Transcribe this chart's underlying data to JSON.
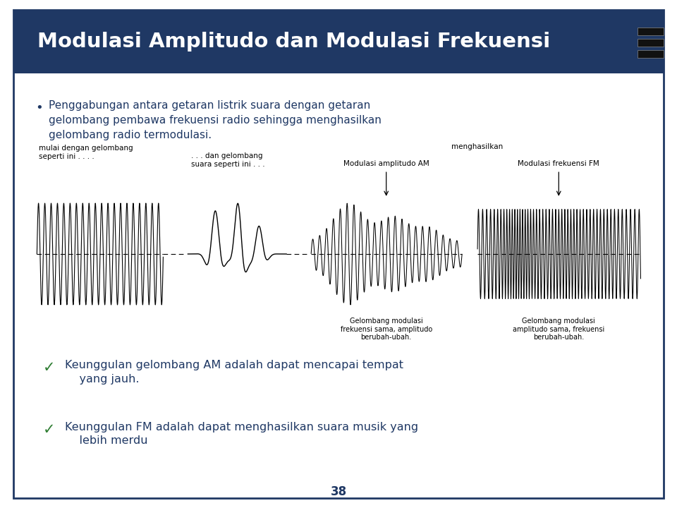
{
  "title": "Modulasi Amplitudo dan Modulasi Frekuensi",
  "title_bg": "#1F3864",
  "title_color": "#FFFFFF",
  "body_bg": "#FFFFFF",
  "border_color": "#1F3864",
  "text_color": "#1F3864",
  "bullet_text": "Penggabungan antara getaran listrik suara dengan getaran\ngelombang pembawa frekuensi radio sehingga menghasilkan\ngelombang radio termodulasi.",
  "label_carrier": "mulai dengan gelombang\nseperti ini . . . .",
  "label_sound": ". . . dan gelombang\nsuara seperti ini . . .",
  "label_menghasilkan": "menghasilkan",
  "label_AM": "Modulasi amplitudo AM",
  "label_FM": "Modulasi frekuensi FM",
  "label_AM_desc": "Gelombang modulasi\nfrekuensi sama, amplitudo\nberubah-ubah.",
  "label_FM_desc": "Gelombang modulasi\namplitudo sama, frekuensi\nberubah-ubah.",
  "check_AM": "Keunggulan gelombang AM adalah dapat mencapai tempat\n    yang jauh.",
  "check_FM": "Keunggulan FM adalah dapat menghasilkan suara musik yang\n    lebih merdu",
  "page_num": "38"
}
